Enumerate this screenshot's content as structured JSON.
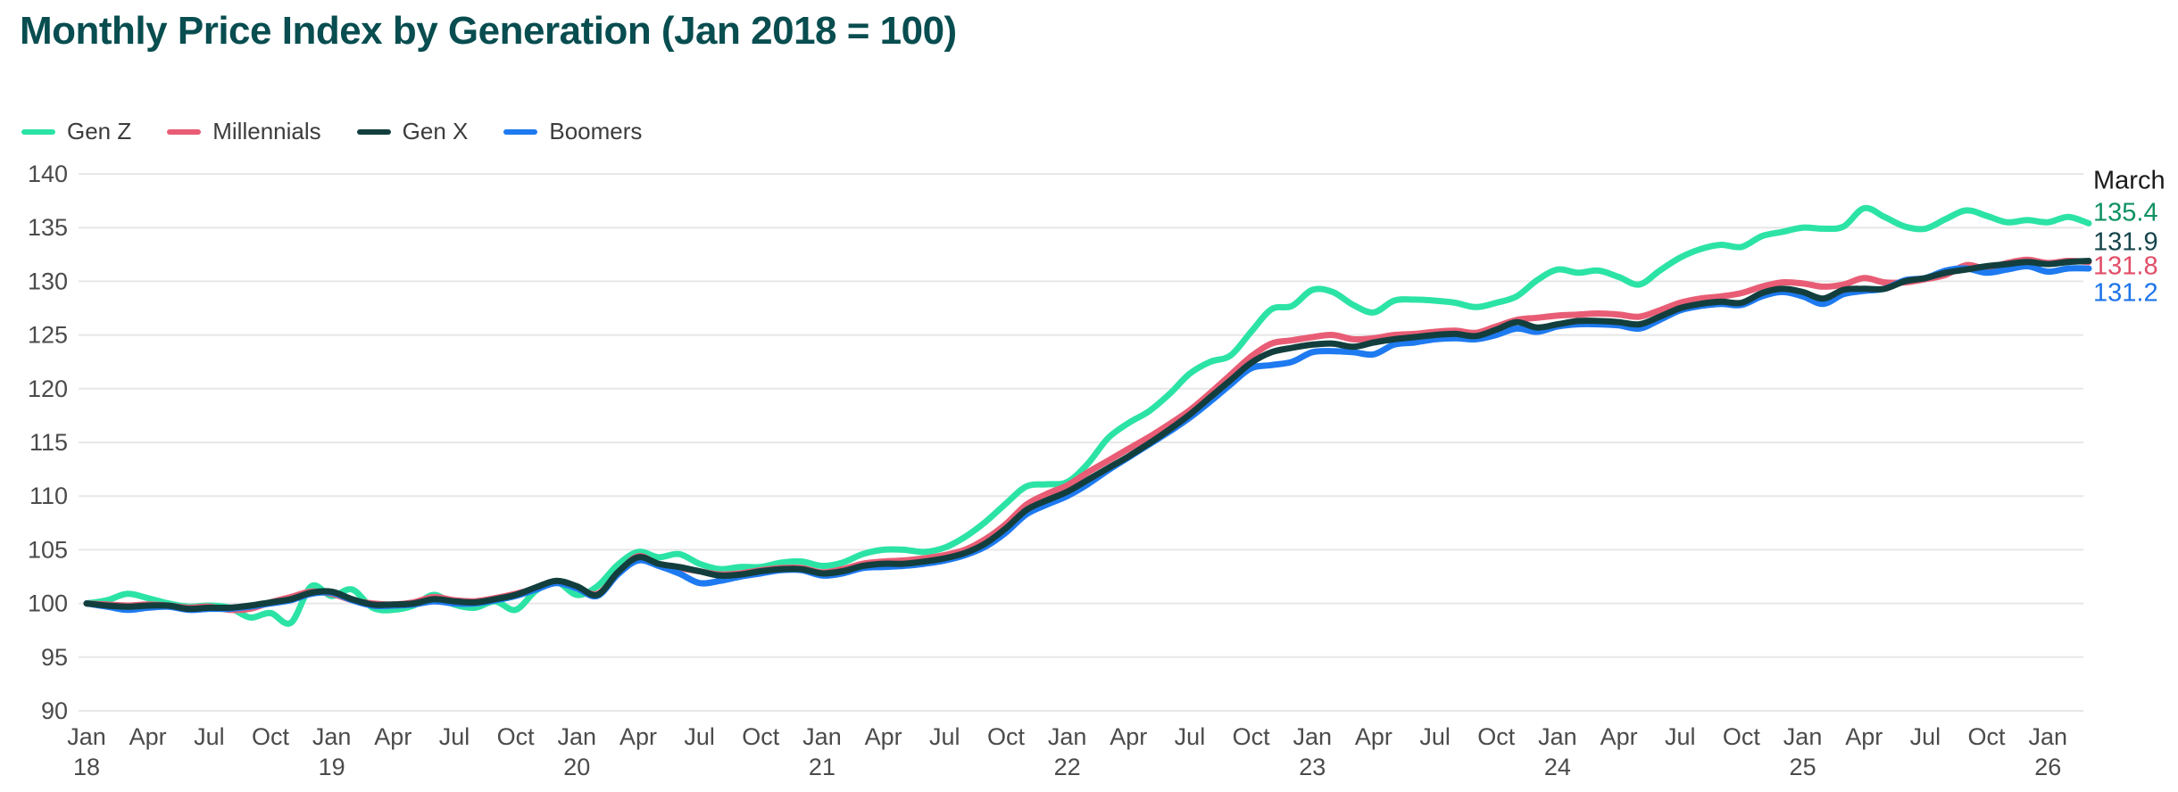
{
  "page": {
    "title": "Monthly Price Index by Generation (Jan 2018 = 100)"
  },
  "chart_data": {
    "type": "line",
    "title": "Monthly Price Index by Generation (Jan 2018 = 100)",
    "x_start": "Jan 2018",
    "x_end": "Mar 2026",
    "months_total": 99,
    "grid": "horizontal",
    "legend_position": "top-left",
    "colors": {
      "background": "#ffffff",
      "title": "#084d50",
      "gridline": "#e7e7e7",
      "tick_text": "#4b4b4b"
    },
    "y_axis": {
      "min": 90,
      "max": 140,
      "step": 5,
      "ticks": [
        140,
        135,
        130,
        125,
        120,
        115,
        110,
        105,
        100,
        95,
        90
      ]
    },
    "x_axis": {
      "ticks": [
        {
          "label": "Jan",
          "year": "18"
        },
        {
          "label": "Apr"
        },
        {
          "label": "Jul"
        },
        {
          "label": "Oct"
        },
        {
          "label": "Jan",
          "year": "19"
        },
        {
          "label": "Apr"
        },
        {
          "label": "Jul"
        },
        {
          "label": "Oct"
        },
        {
          "label": "Jan",
          "year": "20"
        },
        {
          "label": "Apr"
        },
        {
          "label": "Jul"
        },
        {
          "label": "Oct"
        },
        {
          "label": "Jan",
          "year": "21"
        },
        {
          "label": "Apr"
        },
        {
          "label": "Jul"
        },
        {
          "label": "Oct"
        },
        {
          "label": "Jan",
          "year": "22"
        },
        {
          "label": "Apr"
        },
        {
          "label": "Jul"
        },
        {
          "label": "Oct"
        },
        {
          "label": "Jan",
          "year": "23"
        },
        {
          "label": "Apr"
        },
        {
          "label": "Jul"
        },
        {
          "label": "Oct"
        },
        {
          "label": "Jan",
          "year": "24"
        },
        {
          "label": "Apr"
        },
        {
          "label": "Jul"
        },
        {
          "label": "Oct"
        },
        {
          "label": "Jan",
          "year": "25"
        },
        {
          "label": "Apr"
        },
        {
          "label": "Jul"
        },
        {
          "label": "Oct"
        },
        {
          "label": "Jan",
          "year": "26"
        }
      ]
    },
    "annotation": {
      "header": "March"
    },
    "right_label_order": [
      "Gen Z",
      "Gen X",
      "Millennials",
      "Boomers"
    ],
    "series": [
      {
        "name": "Gen Z",
        "color": "#2ce3a6",
        "label_color": "#0f9162",
        "end_value_label": "135.4",
        "values": [
          100,
          100.3,
          100.9,
          100.5,
          100,
          99.7,
          99.8,
          99.6,
          98.7,
          99.1,
          98.2,
          101.6,
          100.7,
          101.3,
          99.6,
          99.4,
          99.8,
          100.8,
          99.9,
          99.6,
          100.2,
          99.4,
          101.2,
          102,
          100.8,
          101.6,
          103.6,
          104.8,
          104.3,
          104.6,
          103.7,
          103.2,
          103.4,
          103.4,
          103.8,
          103.9,
          103.5,
          103.8,
          104.6,
          105,
          105,
          104.8,
          105.2,
          106.2,
          107.6,
          109.3,
          110.9,
          111.1,
          111.3,
          113,
          115.4,
          116.8,
          117.9,
          119.5,
          121.4,
          122.5,
          123.1,
          125.3,
          127.4,
          127.7,
          129.2,
          129,
          127.8,
          127.1,
          128.2,
          128.3,
          128.2,
          128,
          127.6,
          128,
          128.6,
          130.1,
          131.1,
          130.8,
          131,
          130.4,
          129.7,
          131,
          132.2,
          133,
          133.4,
          133.2,
          134.2,
          134.6,
          135,
          134.9,
          135.1,
          136.8,
          136,
          135.1,
          134.9,
          135.8,
          136.6,
          136.1,
          135.5,
          135.7,
          135.5,
          136,
          135.4
        ]
      },
      {
        "name": "Millennials",
        "color": "#e85d75",
        "label_color": "#e14e68",
        "end_value_label": "131.8",
        "values": [
          100,
          99.9,
          99.8,
          99.9,
          99.8,
          99.6,
          99.7,
          99.4,
          99.5,
          100.1,
          100.6,
          101.1,
          100.9,
          100.3,
          100,
          99.9,
          100.1,
          100.6,
          100.3,
          100.2,
          100.5,
          100.9,
          101.4,
          102,
          101.5,
          100.9,
          102.8,
          104.4,
          103.6,
          103.3,
          103,
          102.7,
          102.8,
          103.1,
          103.3,
          103.3,
          102.9,
          103.2,
          103.7,
          103.9,
          104,
          104.2,
          104.5,
          105,
          106,
          107.4,
          109.2,
          110.2,
          111,
          112.2,
          113.3,
          114.4,
          115.5,
          116.7,
          118,
          119.6,
          121.3,
          123,
          124.2,
          124.5,
          124.8,
          125,
          124.6,
          124.7,
          125,
          125.1,
          125.3,
          125.4,
          125.2,
          125.8,
          126.4,
          126.6,
          126.8,
          126.9,
          127,
          126.9,
          126.7,
          127.3,
          128,
          128.4,
          128.6,
          128.9,
          129.5,
          129.9,
          129.8,
          129.5,
          129.7,
          130.3,
          129.9,
          129.9,
          130.2,
          130.6,
          131.5,
          131.2,
          131.7,
          132,
          131.7,
          131.9,
          131.8
        ]
      },
      {
        "name": "Gen X",
        "color": "#123f3e",
        "label_color": "#16454b",
        "end_value_label": "131.9",
        "values": [
          100,
          99.8,
          99.7,
          99.8,
          99.8,
          99.5,
          99.6,
          99.6,
          99.8,
          100.1,
          100.4,
          101,
          101.1,
          100.4,
          99.9,
          99.9,
          100,
          100.4,
          100.2,
          100.1,
          100.4,
          100.8,
          101.5,
          102.1,
          101.6,
          100.8,
          102.9,
          104.3,
          103.7,
          103.4,
          103,
          102.6,
          102.7,
          103,
          103.2,
          103.2,
          102.8,
          103,
          103.5,
          103.7,
          103.7,
          103.9,
          104.2,
          104.7,
          105.6,
          107,
          108.7,
          109.6,
          110.4,
          111.5,
          112.6,
          113.7,
          114.9,
          116.2,
          117.6,
          119.2,
          120.8,
          122.4,
          123.4,
          123.8,
          124.1,
          124.2,
          123.9,
          124.3,
          124.6,
          124.8,
          125,
          125.1,
          124.9,
          125.5,
          126.2,
          125.7,
          126,
          126.3,
          126.3,
          126.2,
          126,
          126.7,
          127.5,
          127.9,
          128.1,
          128,
          128.9,
          129.3,
          129,
          128.4,
          129.2,
          129.3,
          129.3,
          130,
          130.3,
          130.8,
          131.1,
          131.4,
          131.6,
          131.8,
          131.6,
          131.8,
          131.9
        ]
      },
      {
        "name": "Boomers",
        "color": "#1e7af0",
        "label_color": "#1d74ea",
        "end_value_label": "131.2",
        "values": [
          100,
          99.7,
          99.4,
          99.6,
          99.7,
          99.4,
          99.5,
          99.5,
          99.7,
          100,
          100.3,
          100.9,
          101,
          100.3,
          99.8,
          99.8,
          99.9,
          100.2,
          100,
          100,
          100.3,
          100.7,
          101.3,
          101.9,
          101.4,
          100.7,
          102.7,
          104,
          103.5,
          102.8,
          101.9,
          102.1,
          102.5,
          102.8,
          103.1,
          103.1,
          102.6,
          102.8,
          103.3,
          103.4,
          103.5,
          103.7,
          104,
          104.5,
          105.3,
          106.6,
          108.3,
          109.2,
          110,
          111.1,
          112.4,
          113.6,
          114.8,
          116,
          117.3,
          118.8,
          120.4,
          121.9,
          122.2,
          122.5,
          123.4,
          123.5,
          123.4,
          123.2,
          124.1,
          124.3,
          124.6,
          124.7,
          124.6,
          125,
          125.6,
          125.3,
          125.8,
          126,
          126,
          125.9,
          125.6,
          126.4,
          127.3,
          127.7,
          127.9,
          127.8,
          128.6,
          129,
          128.6,
          127.9,
          128.8,
          129.1,
          129.3,
          130.1,
          130.3,
          131,
          131.2,
          130.8,
          131.1,
          131.4,
          130.9,
          131.2,
          131.2
        ]
      }
    ]
  }
}
